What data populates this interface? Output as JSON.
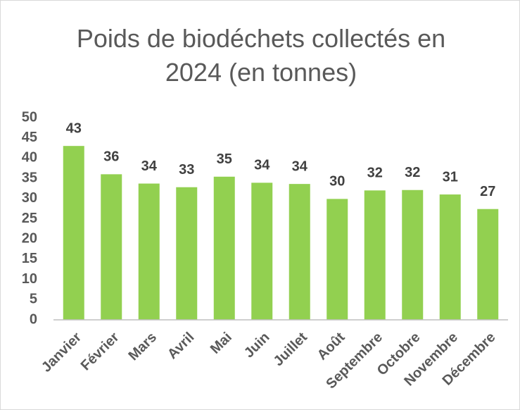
{
  "chart_data": {
    "type": "bar",
    "title": "Poids de biodéchets collectés en 2024 (en tonnes)",
    "categories": [
      "Janvier",
      "Février",
      "Mars",
      "Avril",
      "Mai",
      "Juin",
      "Juillet",
      "Août",
      "Septembre",
      "Octobre",
      "Novembre",
      "Décembre"
    ],
    "values": [
      43,
      36,
      33.7,
      32.8,
      35.4,
      33.9,
      33.6,
      29.9,
      32,
      32.1,
      31,
      27.4
    ],
    "value_labels": [
      "43",
      "36",
      "34",
      "33",
      "35",
      "34",
      "34",
      "30",
      "32",
      "32",
      "31",
      "27"
    ],
    "color": "#92d050",
    "ylim": [
      0,
      50
    ],
    "yticks": [
      0,
      5,
      10,
      15,
      20,
      25,
      30,
      35,
      40,
      45,
      50
    ],
    "grid": false
  }
}
